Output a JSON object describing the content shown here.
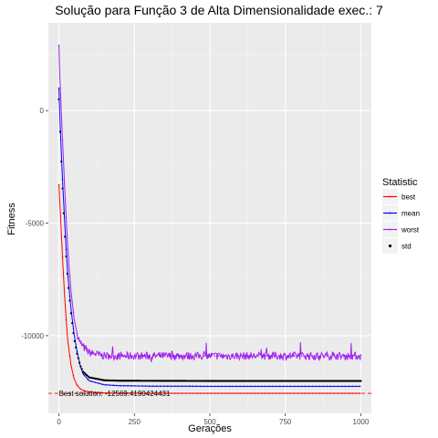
{
  "chart_data": {
    "type": "line",
    "title": "Solução para Função 3 de Alta Dimensionalidade exec.: 7",
    "xlabel": "Gerações",
    "ylabel": "Fitness",
    "xlim": [
      -35,
      1035
    ],
    "ylim": [
      -13450,
      3900
    ],
    "x_ticks": [
      0,
      250,
      500,
      750,
      1000
    ],
    "x_tick_labels": [
      "0",
      "250",
      "500",
      "750",
      "1000"
    ],
    "y_ticks": [
      -10000,
      -5000,
      0
    ],
    "y_tick_labels": [
      "-10000",
      "-5000",
      "0"
    ],
    "grid": true,
    "legend": {
      "title": "Statistic",
      "position": "right",
      "entries": [
        {
          "label": "best",
          "color": "#ff0000",
          "marker": "line"
        },
        {
          "label": "mean",
          "color": "#0000ff",
          "marker": "line"
        },
        {
          "label": "worst",
          "color": "#a020f0",
          "marker": "line"
        },
        {
          "label": "std",
          "color": "#000000",
          "marker": "point"
        }
      ]
    },
    "series": [
      {
        "name": "best",
        "color": "#ff0000",
        "points": [
          [
            0,
            -3300
          ],
          [
            5,
            -4600
          ],
          [
            10,
            -6000
          ],
          [
            15,
            -7300
          ],
          [
            20,
            -8500
          ],
          [
            25,
            -9500
          ],
          [
            30,
            -10300
          ],
          [
            40,
            -11300
          ],
          [
            50,
            -11900
          ],
          [
            60,
            -12200
          ],
          [
            70,
            -12350
          ],
          [
            80,
            -12430
          ],
          [
            100,
            -12500
          ],
          [
            150,
            -12540
          ],
          [
            200,
            -12550
          ],
          [
            300,
            -12555
          ],
          [
            500,
            -12560
          ],
          [
            750,
            -12560
          ],
          [
            1000,
            -12560
          ]
        ]
      },
      {
        "name": "mean",
        "color": "#0000ff",
        "points": [
          [
            0,
            1000
          ],
          [
            5,
            -1000
          ],
          [
            10,
            -2500
          ],
          [
            15,
            -3900
          ],
          [
            20,
            -5200
          ],
          [
            25,
            -6400
          ],
          [
            30,
            -7400
          ],
          [
            40,
            -8800
          ],
          [
            50,
            -9900
          ],
          [
            60,
            -10700
          ],
          [
            70,
            -11300
          ],
          [
            80,
            -11700
          ],
          [
            100,
            -12000
          ],
          [
            150,
            -12180
          ],
          [
            200,
            -12220
          ],
          [
            300,
            -12240
          ],
          [
            500,
            -12250
          ],
          [
            750,
            -12250
          ],
          [
            1000,
            -12250
          ]
        ]
      },
      {
        "name": "worst",
        "color": "#a020f0",
        "points": [
          [
            0,
            2900
          ],
          [
            3,
            1500
          ],
          [
            6,
            600
          ],
          [
            10,
            -700
          ],
          [
            15,
            -2200
          ],
          [
            20,
            -3700
          ],
          [
            25,
            -5000
          ],
          [
            30,
            -6200
          ],
          [
            35,
            -7200
          ],
          [
            40,
            -8000
          ],
          [
            50,
            -9200
          ],
          [
            60,
            -9900
          ],
          [
            70,
            -10300
          ],
          [
            80,
            -10500
          ],
          [
            100,
            -10750
          ],
          [
            150,
            -10900
          ],
          [
            300,
            -10900
          ],
          [
            500,
            -10900
          ],
          [
            750,
            -10900
          ],
          [
            1000,
            -10900
          ]
        ],
        "noise": 350
      },
      {
        "name": "std",
        "color": "#000000",
        "marker": "point",
        "points": [
          [
            0,
            500
          ],
          [
            5,
            -1300
          ],
          [
            10,
            -2900
          ],
          [
            15,
            -4300
          ],
          [
            20,
            -5600
          ],
          [
            25,
            -6700
          ],
          [
            30,
            -7600
          ],
          [
            40,
            -9000
          ],
          [
            50,
            -10100
          ],
          [
            60,
            -10800
          ],
          [
            70,
            -11300
          ],
          [
            80,
            -11600
          ],
          [
            100,
            -11850
          ],
          [
            150,
            -11980
          ],
          [
            200,
            -12000
          ],
          [
            500,
            -12010
          ],
          [
            1000,
            -12010
          ]
        ]
      }
    ],
    "hline": {
      "y": -12560,
      "color": "#ff0000",
      "style": "dashed"
    },
    "annotation": {
      "text": "Best solution: -12569.4190424431",
      "x": 0,
      "y": -12560
    }
  }
}
